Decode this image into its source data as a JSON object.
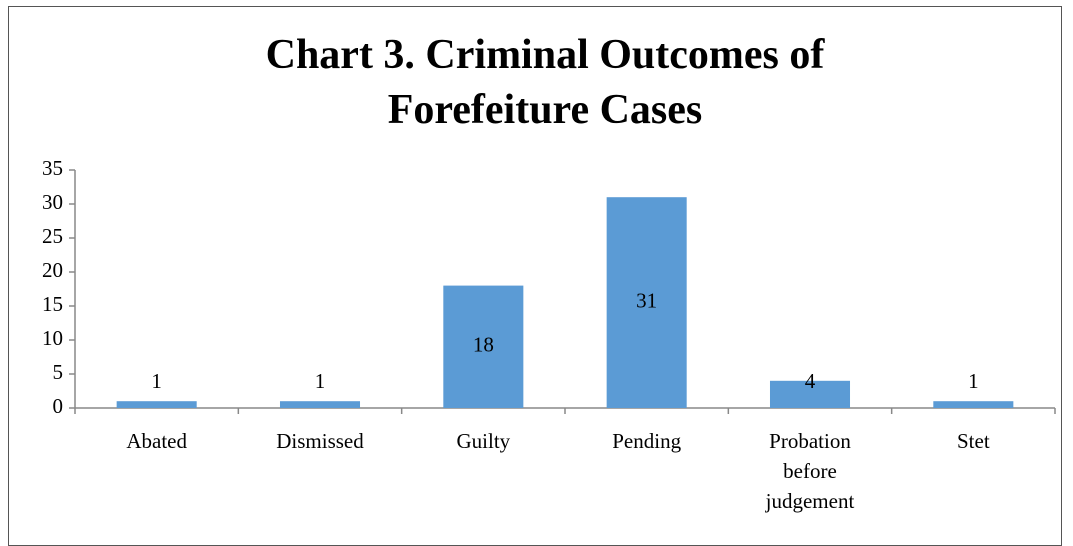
{
  "chart_data": {
    "type": "bar",
    "title": "Chart 3. Criminal Outcomes of Forefeiture Cases",
    "categories": [
      "Abated",
      "Dismissed",
      "Guilty",
      "Pending",
      "Probation before judgement",
      "Stet"
    ],
    "values": [
      1,
      1,
      18,
      31,
      4,
      1
    ],
    "color": "#5b9bd5",
    "ylim": [
      0,
      35
    ],
    "yticks": [
      0,
      5,
      10,
      15,
      20,
      25,
      30,
      35
    ],
    "grid": false
  }
}
